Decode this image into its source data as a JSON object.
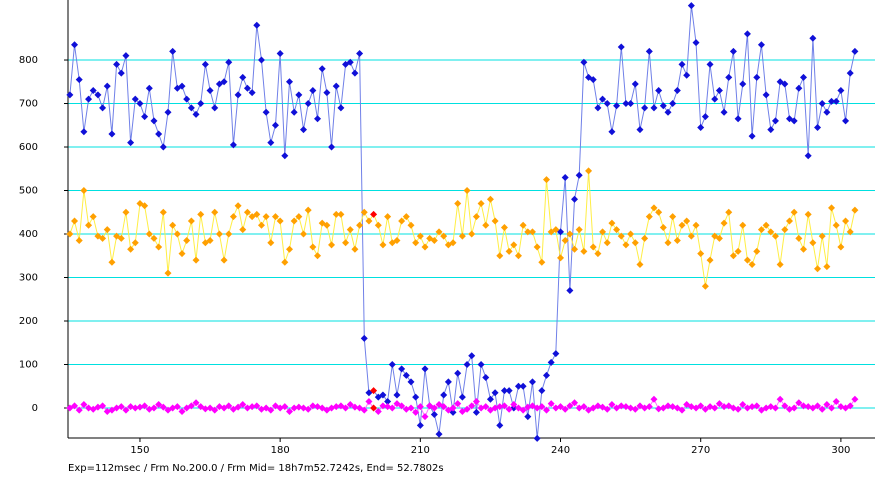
{
  "chart_data": {
    "type": "line",
    "footer": "Exp=112msec / Frm No.200.0 / Frm Mid= 18h7m52.7242s,  End= 52.7802s",
    "x": [
      135,
      136,
      137,
      138,
      139,
      140,
      141,
      142,
      143,
      144,
      145,
      146,
      147,
      148,
      149,
      150,
      151,
      152,
      153,
      154,
      155,
      156,
      157,
      158,
      159,
      160,
      161,
      162,
      163,
      164,
      165,
      166,
      167,
      168,
      169,
      170,
      171,
      172,
      173,
      174,
      175,
      176,
      177,
      178,
      179,
      180,
      181,
      182,
      183,
      184,
      185,
      186,
      187,
      188,
      189,
      190,
      191,
      192,
      193,
      194,
      195,
      196,
      197,
      198,
      199,
      200,
      201,
      202,
      203,
      204,
      205,
      206,
      207,
      208,
      209,
      210,
      211,
      212,
      213,
      214,
      215,
      216,
      217,
      218,
      219,
      220,
      221,
      222,
      223,
      224,
      225,
      226,
      227,
      228,
      229,
      230,
      231,
      232,
      233,
      234,
      235,
      236,
      237,
      238,
      239,
      240,
      241,
      242,
      243,
      244,
      245,
      246,
      247,
      248,
      249,
      250,
      251,
      252,
      253,
      254,
      255,
      256,
      257,
      258,
      259,
      260,
      261,
      262,
      263,
      264,
      265,
      266,
      267,
      268,
      269,
      270,
      271,
      272,
      273,
      274,
      275,
      276,
      277,
      278,
      279,
      280,
      281,
      282,
      283,
      284,
      285,
      286,
      287,
      288,
      289,
      290,
      291,
      292,
      293,
      294,
      295,
      296,
      297,
      298,
      299,
      300,
      301,
      302,
      303
    ],
    "series": [
      {
        "color": "#1010d8",
        "line_color": "#7080e8",
        "values": [
          720,
          835,
          755,
          635,
          710,
          730,
          720,
          690,
          740,
          630,
          790,
          770,
          810,
          610,
          710,
          700,
          670,
          735,
          660,
          630,
          600,
          680,
          820,
          735,
          740,
          710,
          690,
          675,
          700,
          790,
          730,
          690,
          745,
          750,
          795,
          605,
          720,
          760,
          735,
          725,
          880,
          800,
          680,
          610,
          650,
          815,
          580,
          750,
          680,
          720,
          640,
          700,
          730,
          665,
          780,
          725,
          600,
          740,
          690,
          790,
          795,
          770,
          815,
          160,
          35,
          40,
          25,
          30,
          15,
          100,
          30,
          90,
          75,
          60,
          25,
          -40,
          90,
          5,
          -15,
          -60,
          30,
          60,
          -10,
          80,
          25,
          100,
          120,
          -10,
          100,
          70,
          20,
          35,
          -40,
          40,
          40,
          0,
          50,
          50,
          -20,
          60,
          -70,
          40,
          75,
          105,
          125,
          405,
          530,
          270,
          480,
          535,
          795,
          760,
          755,
          690,
          710,
          700,
          635,
          695,
          830,
          700,
          700,
          745,
          640,
          690,
          820,
          690,
          730,
          695,
          680,
          700,
          730,
          790,
          765,
          925,
          840,
          645,
          670,
          790,
          710,
          730,
          680,
          760,
          820,
          665,
          745,
          860,
          625,
          760,
          835,
          720,
          640,
          660,
          750,
          745,
          665,
          660,
          735,
          760,
          580,
          850,
          645,
          700,
          680,
          705,
          705,
          730,
          660,
          770,
          820
        ]
      },
      {
        "color": "#ffa000",
        "line_color": "#ffee44",
        "values": [
          400,
          430,
          385,
          500,
          420,
          440,
          395,
          390,
          410,
          335,
          395,
          390,
          450,
          365,
          380,
          470,
          465,
          400,
          390,
          370,
          450,
          310,
          420,
          400,
          355,
          385,
          430,
          340,
          445,
          380,
          385,
          450,
          400,
          340,
          400,
          440,
          465,
          410,
          450,
          440,
          445,
          420,
          440,
          380,
          440,
          430,
          335,
          365,
          430,
          440,
          400,
          455,
          370,
          350,
          425,
          420,
          375,
          445,
          445,
          380,
          410,
          365,
          420,
          450,
          430,
          445,
          420,
          375,
          440,
          380,
          385,
          430,
          440,
          420,
          380,
          395,
          370,
          390,
          385,
          405,
          395,
          375,
          380,
          470,
          395,
          500,
          400,
          440,
          470,
          420,
          480,
          430,
          350,
          415,
          360,
          375,
          350,
          420,
          405,
          405,
          370,
          335,
          525,
          405,
          410,
          345,
          385,
          400,
          365,
          410,
          360,
          545,
          370,
          355,
          405,
          380,
          425,
          410,
          395,
          375,
          400,
          380,
          330,
          390,
          440,
          460,
          450,
          415,
          380,
          440,
          385,
          420,
          430,
          395,
          420,
          355,
          280,
          340,
          395,
          390,
          425,
          450,
          350,
          360,
          420,
          340,
          330,
          360,
          410,
          420,
          405,
          395,
          330,
          410,
          430,
          450,
          390,
          365,
          445,
          380,
          320,
          395,
          325,
          460,
          420,
          370,
          430,
          405,
          455
        ]
      },
      {
        "color": "#ff00ff",
        "line_color": "#ff70ff",
        "values": [
          0,
          5,
          -5,
          8,
          0,
          -3,
          2,
          5,
          -8,
          -5,
          0,
          3,
          -5,
          3,
          0,
          2,
          5,
          -3,
          0,
          8,
          2,
          -5,
          0,
          3,
          -8,
          0,
          5,
          12,
          3,
          -2,
          0,
          -5,
          3,
          0,
          5,
          -3,
          2,
          8,
          0,
          3,
          5,
          -3,
          0,
          -5,
          5,
          0,
          3,
          -8,
          0,
          2,
          0,
          -3,
          5,
          3,
          0,
          -5,
          0,
          3,
          5,
          0,
          8,
          2,
          0,
          -5,
          15,
          0,
          -8,
          5,
          3,
          0,
          10,
          5,
          -3,
          0,
          -10,
          3,
          -20,
          5,
          0,
          8,
          3,
          -5,
          0,
          10,
          -8,
          -3,
          5,
          15,
          0,
          3,
          -5,
          0,
          3,
          5,
          -3,
          8,
          0,
          -5,
          2,
          5,
          0,
          3,
          -5,
          10,
          0,
          3,
          -3,
          5,
          12,
          0,
          3,
          -5,
          0,
          5,
          2,
          -3,
          8,
          0,
          5,
          3,
          0,
          -3,
          5,
          0,
          3,
          20,
          -2,
          0,
          5,
          3,
          0,
          -5,
          8,
          3,
          0,
          5,
          -3,
          3,
          0,
          10,
          3,
          5,
          0,
          -3,
          8,
          0,
          3,
          5,
          -5,
          0,
          3,
          0,
          20,
          5,
          -3,
          0,
          12,
          5,
          3,
          0,
          5,
          -3,
          8,
          0,
          15,
          3,
          0,
          5,
          20
        ]
      }
    ],
    "highlight_x": 200,
    "highlight_color": "#ff0000",
    "xlim": [
      134.6,
      307.3
    ],
    "ylim": [
      -69,
      938
    ],
    "xticks": [
      150,
      180,
      210,
      240,
      270,
      300
    ],
    "yticks": [
      0,
      100,
      200,
      300,
      400,
      500,
      600,
      700,
      800
    ],
    "grid": true,
    "grid_color": "#00e0e0"
  }
}
